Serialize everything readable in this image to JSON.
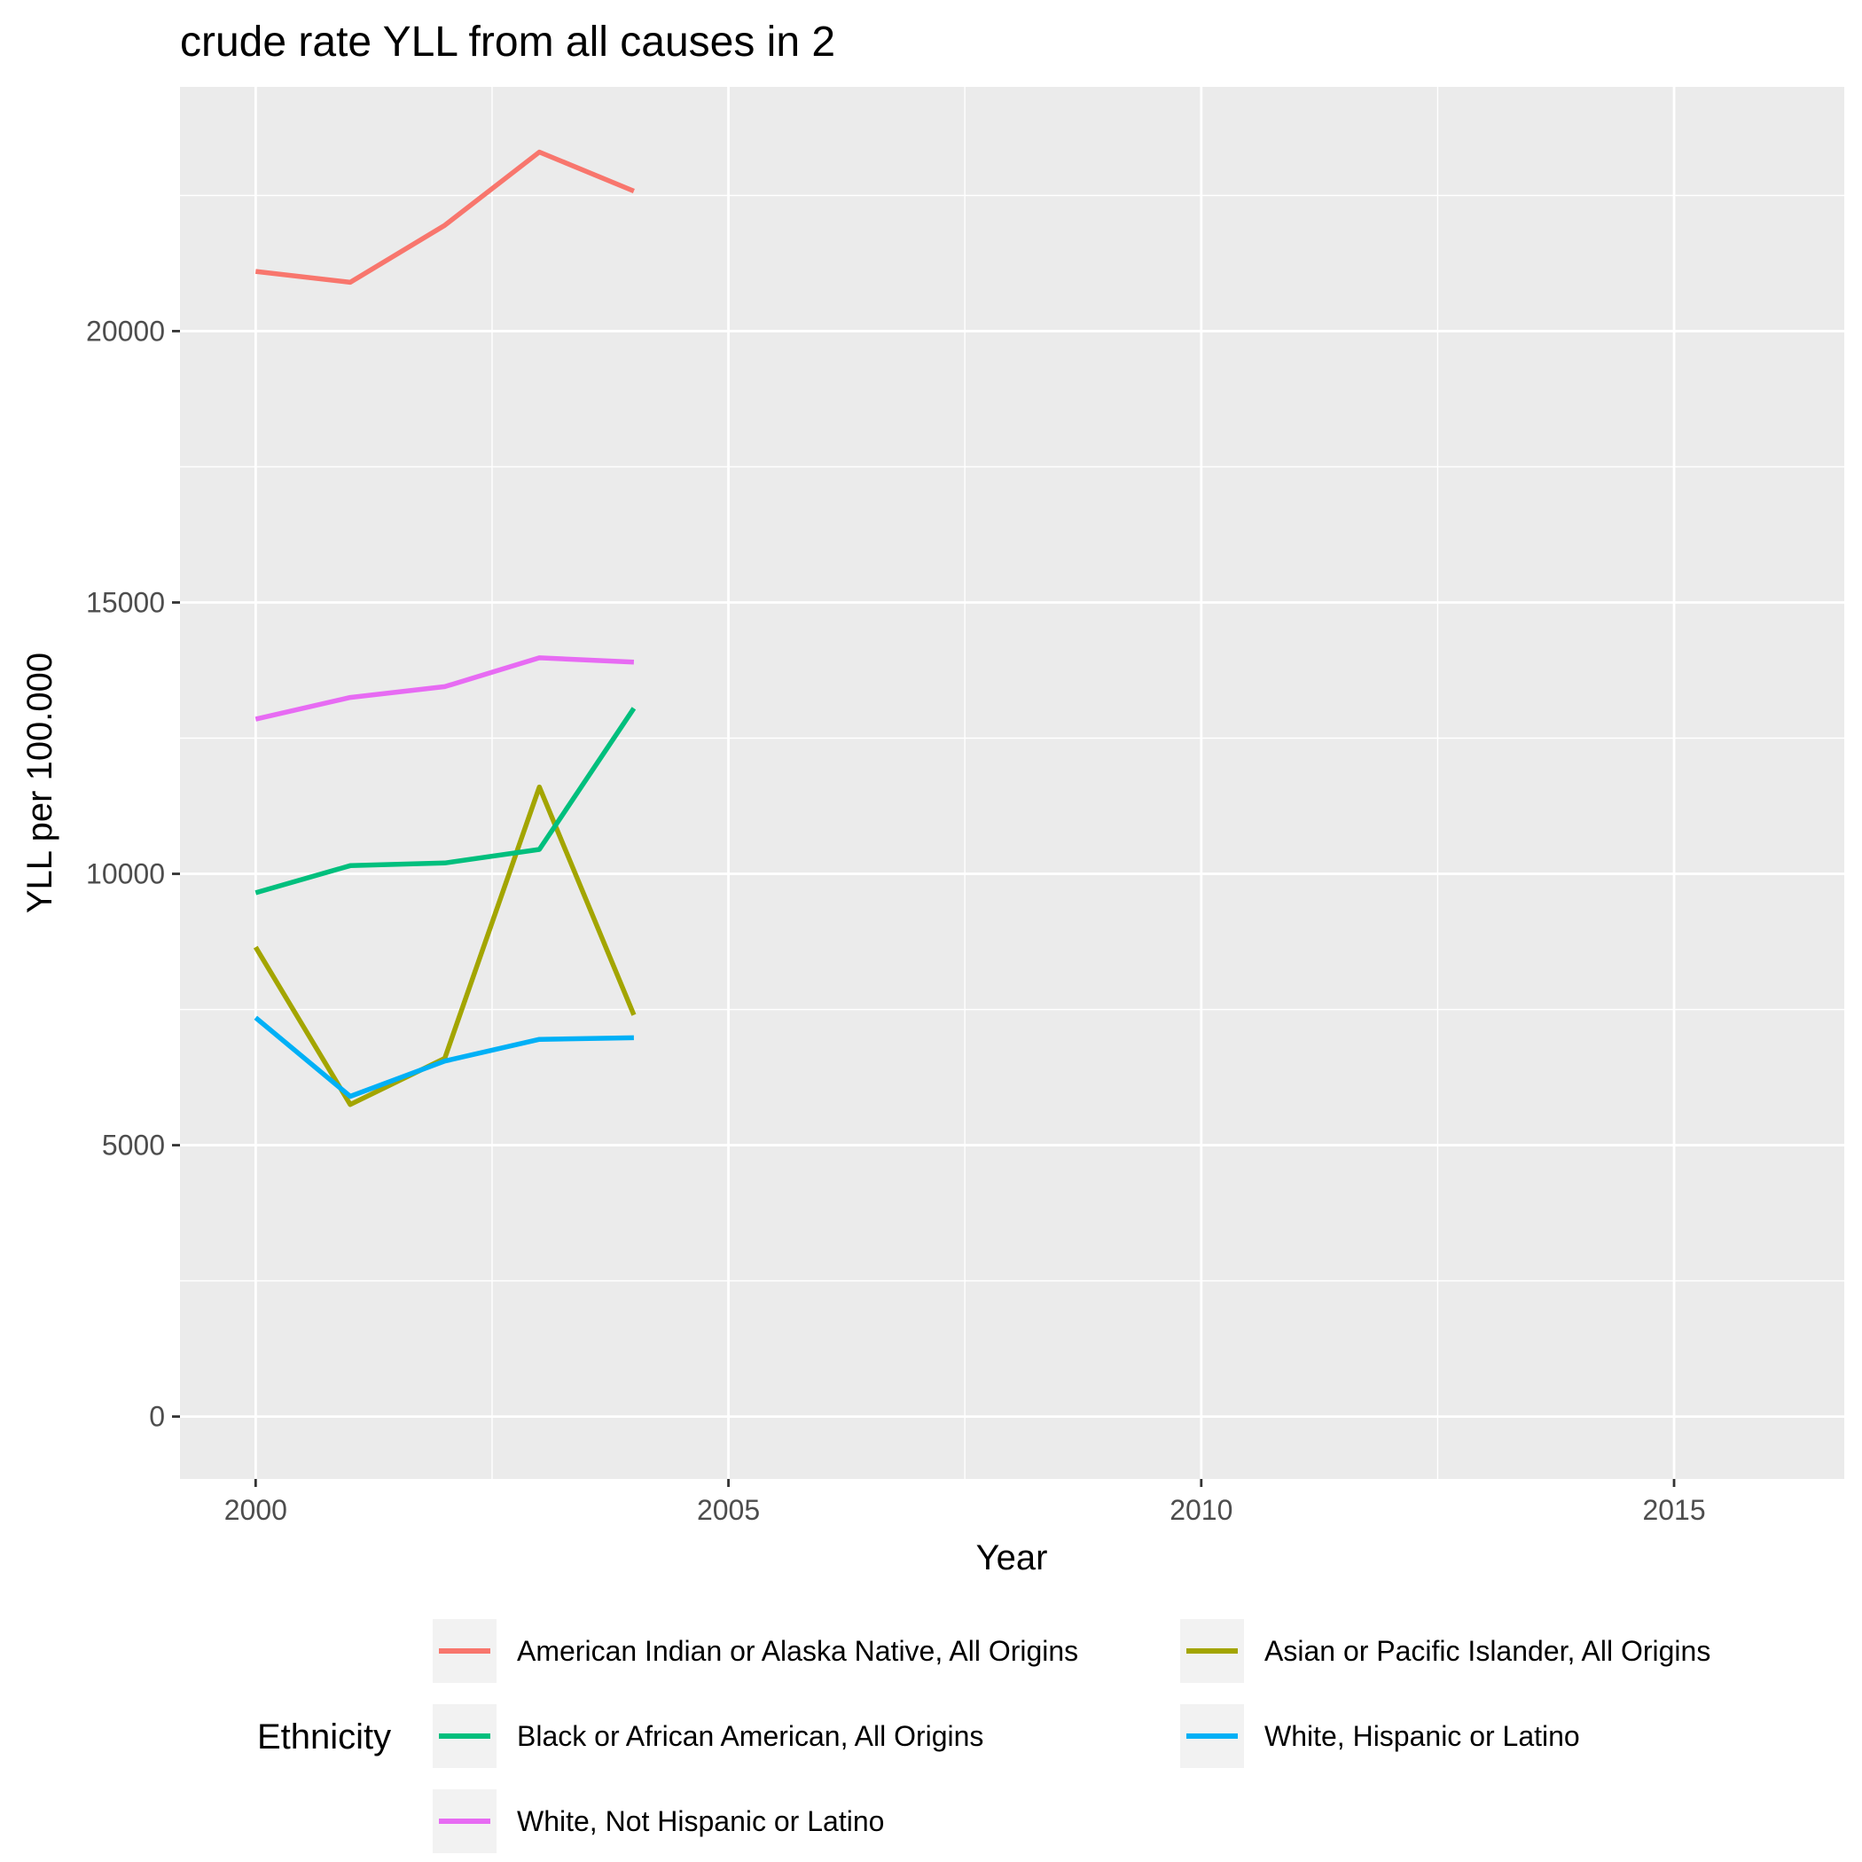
{
  "chart_data": {
    "type": "line",
    "title": "crude rate YLL from all causes in 2",
    "xlabel": "Year",
    "ylabel": "YLL per 100.000",
    "xlim": [
      1999.2,
      2016.8
    ],
    "ylim": [
      -1150,
      24500
    ],
    "x_ticks": [
      2000,
      2005,
      2010,
      2015
    ],
    "x_tick_labels": [
      "2000",
      "2005",
      "2010",
      "2015"
    ],
    "y_ticks": [
      0,
      5000,
      10000,
      15000,
      20000
    ],
    "y_tick_labels": [
      "0",
      "5000",
      "10000",
      "15000",
      "20000"
    ],
    "grid": true,
    "legend": {
      "title": "Ethnicity",
      "position": "bottom"
    },
    "x": [
      2000,
      2001,
      2002,
      2003,
      2004
    ],
    "series": [
      {
        "name": "American Indian or Alaska Native, All Origins",
        "color": "#F8766D",
        "values": [
          21100,
          20900,
          21950,
          23300,
          22580
        ]
      },
      {
        "name": "Asian or Pacific Islander, All Origins",
        "color": "#A3A500",
        "values": [
          8650,
          5750,
          6600,
          11600,
          7400
        ]
      },
      {
        "name": "Black or African American, All Origins",
        "color": "#00BF7D",
        "values": [
          9650,
          10150,
          10200,
          10450,
          13050
        ]
      },
      {
        "name": "White, Hispanic or Latino",
        "color": "#00B0F6",
        "values": [
          7350,
          5900,
          6550,
          6950,
          6980
        ]
      },
      {
        "name": "White, Not Hispanic or Latino",
        "color": "#E76BF3",
        "values": [
          12850,
          13250,
          13450,
          13980,
          13900
        ]
      }
    ]
  }
}
